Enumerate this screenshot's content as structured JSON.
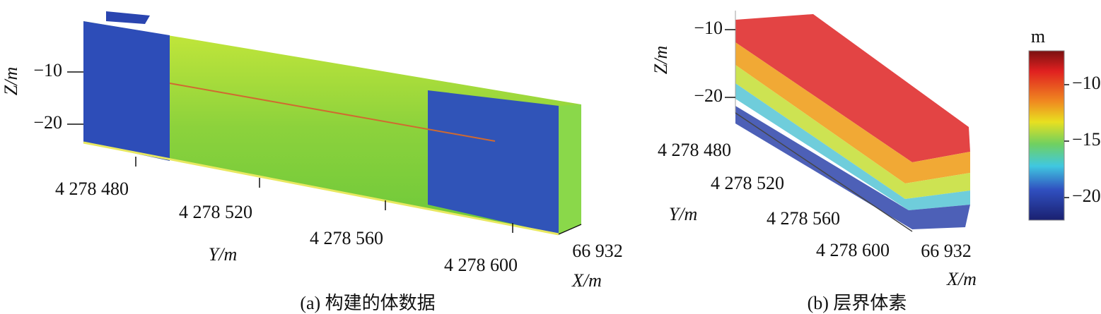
{
  "panels": [
    {
      "caption": "(a) 构建的体数据",
      "z_label": "Z/m",
      "z_ticks": [
        "−10",
        "−20"
      ],
      "y_label": "Y/m",
      "y_ticks": [
        "4 278 480",
        "4 278 520",
        "4 278 560",
        "4 278 600"
      ],
      "x_label": "X/m",
      "x_ticks": [
        "66 932"
      ]
    },
    {
      "caption": "(b) 层界体素",
      "z_label": "Z/m",
      "z_ticks": [
        "−10",
        "−20"
      ],
      "y_label": "Y/m",
      "y_ticks": [
        "4 278 480",
        "4 278 520",
        "4 278 560",
        "4 278 600"
      ],
      "x_label": "X/m",
      "x_ticks": [
        "66 932"
      ]
    }
  ],
  "colorbar": {
    "unit": "m",
    "lim": [
      -22,
      -7
    ],
    "ticks": [
      {
        "value": -10,
        "label": "−10"
      },
      {
        "value": -15,
        "label": "−15"
      },
      {
        "value": -20,
        "label": "−20"
      }
    ]
  }
}
